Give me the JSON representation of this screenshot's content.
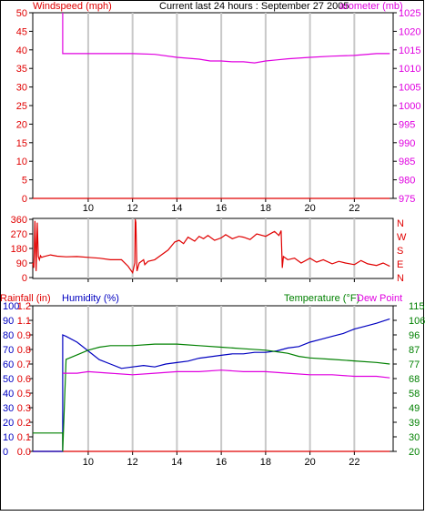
{
  "page": {
    "title": "Current last 24 hours : September 27 2005"
  },
  "colors": {
    "wind": "#e00000",
    "baro": "#e000e0",
    "direction": "#e00000",
    "rain": "#e00000",
    "humidity": "#0000c0",
    "temperature": "#008000",
    "dewpoint": "#e000e0",
    "grid": "#c8c8c8"
  },
  "chart_data": [
    {
      "type": "line",
      "id": "wind-baro",
      "title": "Current last 24 hours : September 27 2005",
      "left_label": "Windspeed (mph)",
      "right_label": "arometer (mb)",
      "x_ticks": [
        10,
        12,
        14,
        16,
        18,
        20,
        22
      ],
      "xlim": [
        7.5,
        23.75
      ],
      "left_ylim": [
        0,
        50
      ],
      "left_ticks": [
        0,
        5,
        10,
        15,
        20,
        25,
        30,
        35,
        40,
        45,
        50
      ],
      "right_ylim": [
        975,
        1025
      ],
      "right_ticks": [
        975,
        980,
        985,
        990,
        995,
        1000,
        1005,
        1010,
        1015,
        1020,
        1025
      ],
      "grid": "vertical",
      "series": [
        {
          "axis": "left",
          "color_key": "wind",
          "x": [
            7.5,
            23.6
          ],
          "y": [
            0,
            0
          ]
        },
        {
          "axis": "right",
          "color_key": "baro",
          "x": [
            8.85,
            8.85,
            9.0,
            10.0,
            11.0,
            12.0,
            13.0,
            14.0,
            15.0,
            15.5,
            16.0,
            16.5,
            17.0,
            17.5,
            18.0,
            18.5,
            19.0,
            20.0,
            21.0,
            22.0,
            23.0,
            23.6
          ],
          "y": [
            1025,
            1014,
            1014,
            1014,
            1014,
            1014,
            1013.8,
            1013,
            1012.5,
            1012,
            1012,
            1011.8,
            1011.8,
            1011.5,
            1012,
            1012.3,
            1012.6,
            1013,
            1013.3,
            1013.5,
            1014,
            1014
          ]
        }
      ]
    },
    {
      "type": "line",
      "id": "wind-direction",
      "left_ticks": [
        0,
        90,
        180,
        270,
        360
      ],
      "left_ylim": [
        0,
        360
      ],
      "right_labels": [
        "N",
        "W",
        "S",
        "E",
        "N"
      ],
      "xlim": [
        7.5,
        23.75
      ],
      "x_ticks": [
        10,
        12,
        14,
        16,
        18,
        20,
        22
      ],
      "grid": "vertical",
      "series": [
        {
          "color_key": "direction",
          "x": [
            7.5,
            7.55,
            7.6,
            7.65,
            7.7,
            7.75,
            7.8,
            7.85,
            7.9,
            8.0,
            8.3,
            8.6,
            9.0,
            9.5,
            10.0,
            10.5,
            11.0,
            11.5,
            11.8,
            12.0,
            12.1,
            12.12,
            12.15,
            12.2,
            12.3,
            12.5,
            12.55,
            12.7,
            13.0,
            13.3,
            13.6,
            13.9,
            14.1,
            14.3,
            14.5,
            14.8,
            15.0,
            15.2,
            15.4,
            15.7,
            16.0,
            16.2,
            16.5,
            16.8,
            17.0,
            17.3,
            17.6,
            18.0,
            18.4,
            18.6,
            18.7,
            18.75,
            18.8,
            19.0,
            19.3,
            19.6,
            20.0,
            20.3,
            20.6,
            21.0,
            21.3,
            21.6,
            22.0,
            22.3,
            22.6,
            23.0,
            23.3,
            23.6
          ],
          "y": [
            90,
            60,
            350,
            40,
            340,
            130,
            110,
            135,
            125,
            130,
            140,
            132,
            128,
            130,
            125,
            120,
            110,
            110,
            70,
            30,
            90,
            360,
            340,
            40,
            90,
            110,
            80,
            100,
            110,
            140,
            170,
            220,
            230,
            210,
            250,
            225,
            255,
            240,
            260,
            230,
            245,
            265,
            240,
            255,
            250,
            235,
            270,
            255,
            285,
            260,
            290,
            60,
            130,
            110,
            120,
            90,
            120,
            95,
            110,
            85,
            100,
            90,
            80,
            105,
            85,
            75,
            90,
            70
          ]
        }
      ]
    },
    {
      "type": "line",
      "id": "rain-humidity-temp",
      "left_label_rain": "Rainfall (in)",
      "left_label_humidity": "Humidity (%)",
      "right_label": "Temperature (°F)",
      "right_label_2": "Dew Point",
      "humidity_ticks": [
        0,
        10,
        20,
        30,
        40,
        50,
        60,
        70,
        80,
        90,
        100
      ],
      "humidity_ylim": [
        0,
        100
      ],
      "rain_ticks": [
        "0.0",
        "0.1",
        "0.2",
        "0.3",
        "0.5",
        "0.6",
        "0.7",
        "0.8",
        "0.9",
        "1.1",
        "1.2"
      ],
      "temp_ticks": [
        20,
        30,
        39,
        49,
        58,
        68,
        77,
        87,
        96,
        106,
        115
      ],
      "temp_ylim": [
        20,
        115
      ],
      "xlim": [
        7.5,
        23.75
      ],
      "x_ticks": [
        10,
        12,
        14,
        16,
        18,
        20,
        22
      ],
      "grid": "vertical",
      "series": [
        {
          "name": "Rainfall (in)",
          "axis": "rain",
          "color_key": "rain",
          "x": [
            7.5,
            23.6
          ],
          "y": [
            0,
            0
          ]
        },
        {
          "name": "Humidity (%)",
          "axis": "humidity",
          "color_key": "humidity",
          "x": [
            7.5,
            8.85,
            8.85,
            9.0,
            9.5,
            10.0,
            10.5,
            11.0,
            11.5,
            12.0,
            12.5,
            13.0,
            13.5,
            14.0,
            14.5,
            15.0,
            15.5,
            16.0,
            16.5,
            17.0,
            17.5,
            18.0,
            18.5,
            19.0,
            19.5,
            20.0,
            20.5,
            21.0,
            21.5,
            22.0,
            22.5,
            23.0,
            23.6
          ],
          "y": [
            0,
            0,
            80,
            79,
            75,
            69,
            63,
            60,
            57,
            58,
            59,
            58,
            60,
            61,
            62,
            64,
            65,
            66,
            67,
            67,
            68,
            68,
            69,
            71,
            72,
            75,
            77,
            79,
            81,
            84,
            86,
            88,
            91
          ]
        },
        {
          "name": "Temperature (°F)",
          "axis": "temp",
          "color_key": "temperature",
          "x": [
            7.5,
            8.85,
            8.85,
            9.0,
            9.5,
            10.0,
            10.5,
            11.0,
            12.0,
            13.0,
            14.0,
            15.0,
            16.0,
            17.0,
            18.0,
            18.5,
            19.0,
            19.5,
            20.0,
            21.0,
            22.0,
            23.0,
            23.6
          ],
          "y": [
            32,
            32,
            20,
            80,
            83,
            86,
            88,
            89,
            89,
            90,
            90,
            89,
            88,
            87,
            86,
            85,
            84,
            82,
            81,
            80,
            79,
            78,
            77
          ]
        },
        {
          "name": "Dew Point",
          "axis": "temp",
          "color_key": "dewpoint",
          "x": [
            8.85,
            9.5,
            10.0,
            11.0,
            12.0,
            13.0,
            14.0,
            15.0,
            16.0,
            17.0,
            18.0,
            19.0,
            20.0,
            21.0,
            22.0,
            23.0,
            23.6
          ],
          "y": [
            71,
            71,
            72,
            71,
            70,
            71,
            72,
            72,
            73,
            72,
            72,
            71,
            70,
            70,
            69,
            69,
            68
          ]
        }
      ]
    }
  ]
}
